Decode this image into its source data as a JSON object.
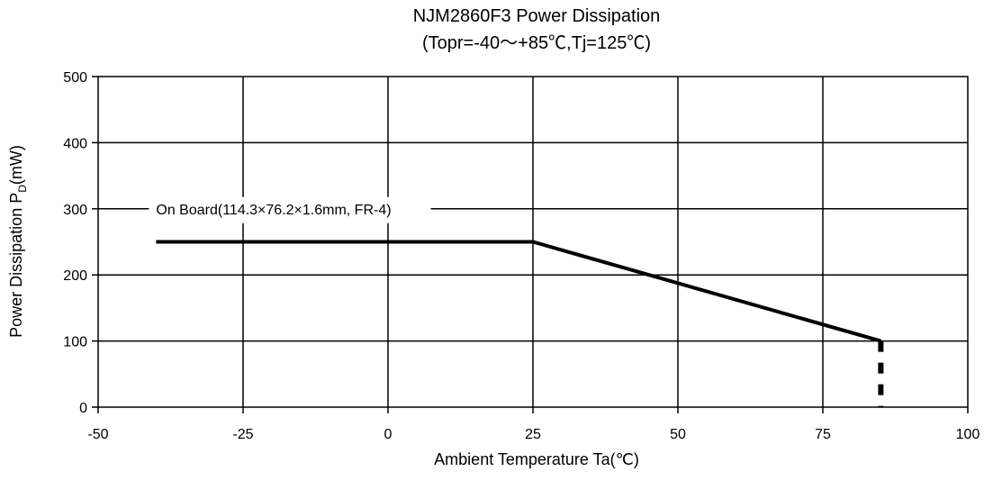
{
  "chart_data": {
    "type": "line",
    "title": "NJM2860F3 Power Dissipation",
    "subtitle": "(Topr=-40～+85℃,Tj=125℃)",
    "xlabel": "Ambient Temperature Ta(℃)",
    "ylabel": "Power Dissipation PD(mW)",
    "ylabel_parts": {
      "pre": "Power Dissipation P",
      "sub": "D",
      "post": "(mW)"
    },
    "xlim": [
      -50,
      100
    ],
    "ylim": [
      0,
      500
    ],
    "x_ticks": [
      -50,
      -25,
      0,
      25,
      50,
      75,
      100
    ],
    "y_ticks": [
      0,
      100,
      200,
      300,
      400,
      500
    ],
    "x_tick_labels": [
      "-50",
      "-25",
      "0",
      "25",
      "50",
      "75",
      "100"
    ],
    "y_tick_labels": [
      "0",
      "100",
      "200",
      "300",
      "400",
      "500"
    ],
    "grid": true,
    "series": [
      {
        "x": [
          -40,
          25,
          85
        ],
        "y": [
          250,
          250,
          100
        ],
        "color": "#000000"
      }
    ],
    "cutoff_line": {
      "x": 85,
      "y": [
        0,
        100
      ],
      "style": "dashed"
    },
    "annotations": [
      {
        "text": "On Board(114.3×76.2×1.6mm, FR-4)",
        "x": -40,
        "y": 300
      }
    ]
  }
}
